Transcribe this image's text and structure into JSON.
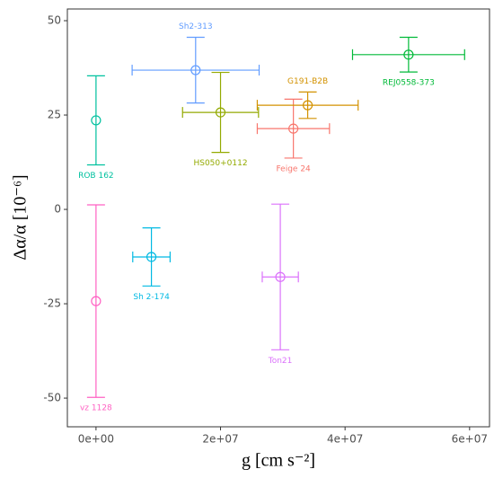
{
  "chart_data": {
    "type": "scatter",
    "x_label": "g [cm s⁻²]",
    "y_label": "Δα/α [10⁻⁶]",
    "xlim": [
      -4600000,
      63200000
    ],
    "ylim": [
      -57.6,
      53.1
    ],
    "xticks": [
      {
        "value": 0,
        "label": "0e+00"
      },
      {
        "value": 20000000,
        "label": "2e+07"
      },
      {
        "value": 40000000,
        "label": "4e+07"
      },
      {
        "value": 60000000,
        "label": "6e+07"
      }
    ],
    "yticks": [
      -50,
      -25,
      0,
      25,
      50
    ],
    "series": [
      {
        "name": "Feige 24",
        "color": "#F8766D",
        "x": [
          31700000
        ],
        "xerr": [
          5800000
        ],
        "values": [
          21.4
        ],
        "yerr": [
          7.8
        ]
      },
      {
        "name": "G191-B2B",
        "color": "#D39200",
        "x": [
          34000000
        ],
        "xerr": [
          8100000
        ],
        "values": [
          27.6
        ],
        "yerr": [
          3.5
        ]
      },
      {
        "name": "HS050+0112",
        "color": "#93AA00",
        "x": [
          20000000
        ],
        "xerr": [
          6100000
        ],
        "values": [
          25.7
        ],
        "yerr": [
          10.6
        ]
      },
      {
        "name": "REJ0558-373",
        "color": "#00BA38",
        "x": [
          50200000
        ],
        "xerr": [
          9000000
        ],
        "values": [
          41
        ],
        "yerr": [
          4.6
        ]
      },
      {
        "name": "ROB 162",
        "color": "#00C19F",
        "x": [
          0
        ],
        "xerr": [
          0
        ],
        "values": [
          23.6
        ],
        "yerr": [
          11.8
        ]
      },
      {
        "name": "Sh 2-174",
        "color": "#00B9E3",
        "x": [
          8900000
        ],
        "xerr": [
          3000000
        ],
        "values": [
          -12.6
        ],
        "yerr": [
          7.7
        ]
      },
      {
        "name": "Sh2-313",
        "color": "#619CFF",
        "x": [
          16000000
        ],
        "xerr": [
          10200000
        ],
        "values": [
          36.9
        ],
        "yerr": [
          8.7
        ]
      },
      {
        "name": "Ton21",
        "color": "#DB72FB",
        "x": [
          29600000
        ],
        "xerr": [
          2900000
        ],
        "values": [
          -17.9
        ],
        "yerr": [
          19.3
        ]
      },
      {
        "name": "vz 1128",
        "color": "#FF61C3",
        "x": [
          0
        ],
        "xerr": [
          0
        ],
        "values": [
          -24.3
        ],
        "yerr": [
          25.5
        ]
      }
    ]
  }
}
